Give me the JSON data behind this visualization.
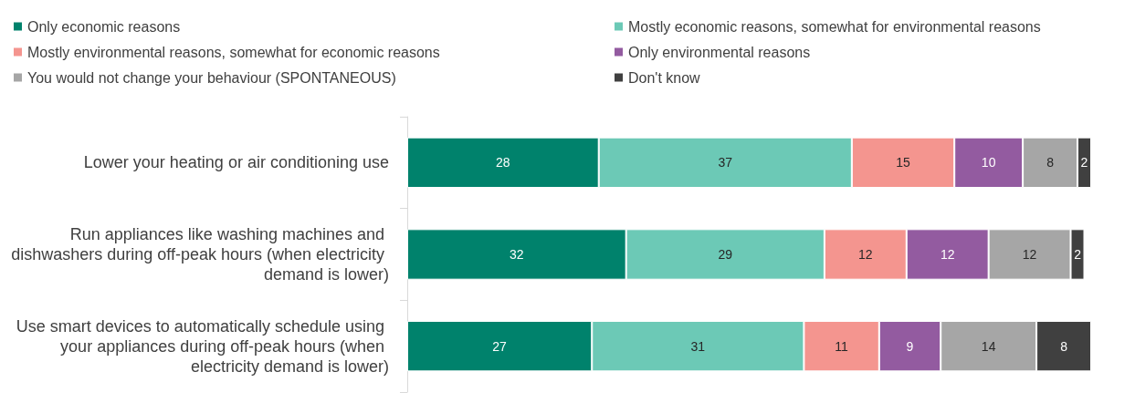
{
  "chart_data": {
    "type": "bar",
    "orientation": "horizontal",
    "stacked": true,
    "data_labels": true,
    "legend": "top",
    "categories": [
      "Lower your heating or air conditioning use",
      "Run appliances like washing machines and dishwashers during off-peak hours (when electricity demand is lower)",
      "Use smart devices to automatically schedule using your appliances during off-peak hours (when electricity demand is lower)"
    ],
    "series": [
      {
        "name": "Only economic reasons",
        "color": "#00826c",
        "values": [
          28,
          32,
          27
        ]
      },
      {
        "name": "Mostly economic reasons, somewhat for environmental reasons",
        "color": "#6cc9b6",
        "values": [
          37,
          29,
          31
        ]
      },
      {
        "name": "Mostly environmental reasons, somewhat for economic reasons",
        "color": "#f4958f",
        "values": [
          15,
          12,
          11
        ]
      },
      {
        "name": "Only environmental reasons",
        "color": "#935ba0",
        "values": [
          10,
          12,
          9
        ]
      },
      {
        "name": "You would not change your behaviour (SPONTANEOUS)",
        "color": "#a6a6a6",
        "values": [
          8,
          12,
          14
        ]
      },
      {
        "name": "Don't know",
        "color": "#404040",
        "values": [
          2,
          2,
          8
        ]
      }
    ]
  }
}
